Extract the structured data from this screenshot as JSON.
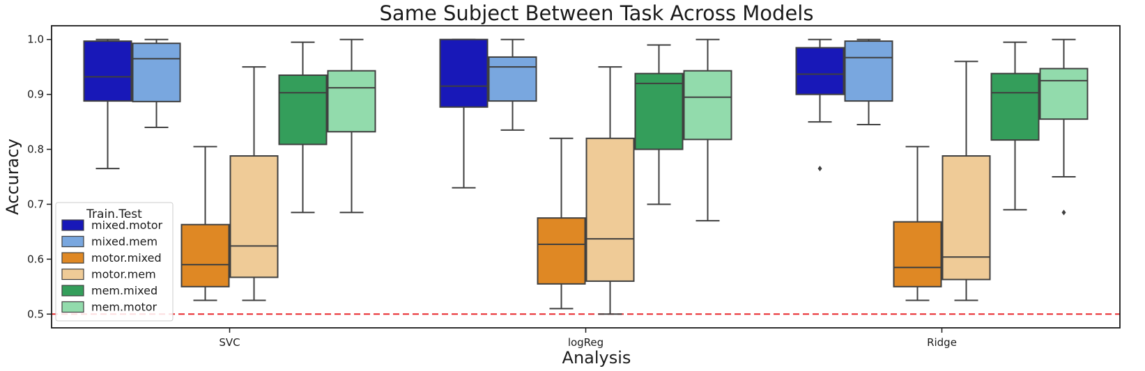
{
  "chart_data": {
    "type": "box",
    "title": "Same Subject Between Task Across Models",
    "xlabel": "Analysis",
    "ylabel": "Accuracy",
    "ylim": [
      0.475,
      1.025
    ],
    "yticks": [
      "0.5",
      "0.6",
      "0.7",
      "0.8",
      "0.9",
      "1.0"
    ],
    "categories": [
      "SVC",
      "logReg",
      "Ridge"
    ],
    "reference_line": {
      "y": 0.5,
      "color": "#e8262a",
      "style": "dashed"
    },
    "legend": {
      "title": "Train.Test",
      "position": "lower-left"
    },
    "series": [
      {
        "name": "mixed.motor",
        "color": "#1818b8",
        "boxes": [
          {
            "whislo": 0.765,
            "q1": 0.888,
            "med": 0.932,
            "q3": 0.997,
            "whishi": 1.0,
            "fliers": []
          },
          {
            "whislo": 0.73,
            "q1": 0.877,
            "med": 0.915,
            "q3": 1.0,
            "whishi": 1.0,
            "fliers": []
          },
          {
            "whislo": 0.85,
            "q1": 0.9,
            "med": 0.937,
            "q3": 0.985,
            "whishi": 1.0,
            "fliers": [
              0.765
            ]
          }
        ]
      },
      {
        "name": "mixed.mem",
        "color": "#79a7df",
        "boxes": [
          {
            "whislo": 0.84,
            "q1": 0.887,
            "med": 0.965,
            "q3": 0.993,
            "whishi": 1.0,
            "fliers": []
          },
          {
            "whislo": 0.835,
            "q1": 0.888,
            "med": 0.95,
            "q3": 0.968,
            "whishi": 1.0,
            "fliers": []
          },
          {
            "whislo": 0.845,
            "q1": 0.888,
            "med": 0.967,
            "q3": 0.997,
            "whishi": 1.0,
            "fliers": []
          }
        ]
      },
      {
        "name": "motor.mixed",
        "color": "#df8824",
        "boxes": [
          {
            "whislo": 0.525,
            "q1": 0.55,
            "med": 0.59,
            "q3": 0.663,
            "whishi": 0.805,
            "fliers": []
          },
          {
            "whislo": 0.51,
            "q1": 0.555,
            "med": 0.627,
            "q3": 0.675,
            "whishi": 0.82,
            "fliers": []
          },
          {
            "whislo": 0.525,
            "q1": 0.55,
            "med": 0.585,
            "q3": 0.668,
            "whishi": 0.805,
            "fliers": []
          }
        ]
      },
      {
        "name": "motor.mem",
        "color": "#efcb97",
        "boxes": [
          {
            "whislo": 0.525,
            "q1": 0.567,
            "med": 0.624,
            "q3": 0.788,
            "whishi": 0.95,
            "fliers": []
          },
          {
            "whislo": 0.5,
            "q1": 0.56,
            "med": 0.637,
            "q3": 0.82,
            "whishi": 0.95,
            "fliers": []
          },
          {
            "whislo": 0.525,
            "q1": 0.563,
            "med": 0.604,
            "q3": 0.788,
            "whishi": 0.96,
            "fliers": []
          }
        ]
      },
      {
        "name": "mem.mixed",
        "color": "#349e5b",
        "boxes": [
          {
            "whislo": 0.685,
            "q1": 0.809,
            "med": 0.903,
            "q3": 0.935,
            "whishi": 0.995,
            "fliers": []
          },
          {
            "whislo": 0.7,
            "q1": 0.8,
            "med": 0.92,
            "q3": 0.938,
            "whishi": 0.99,
            "fliers": []
          },
          {
            "whislo": 0.69,
            "q1": 0.817,
            "med": 0.903,
            "q3": 0.938,
            "whishi": 0.995,
            "fliers": []
          }
        ]
      },
      {
        "name": "mem.motor",
        "color": "#92dbac",
        "boxes": [
          {
            "whislo": 0.685,
            "q1": 0.832,
            "med": 0.912,
            "q3": 0.943,
            "whishi": 1.0,
            "fliers": []
          },
          {
            "whislo": 0.67,
            "q1": 0.818,
            "med": 0.895,
            "q3": 0.943,
            "whishi": 1.0,
            "fliers": []
          },
          {
            "whislo": 0.75,
            "q1": 0.855,
            "med": 0.925,
            "q3": 0.947,
            "whishi": 1.0,
            "fliers": [
              0.685
            ]
          }
        ]
      }
    ]
  }
}
